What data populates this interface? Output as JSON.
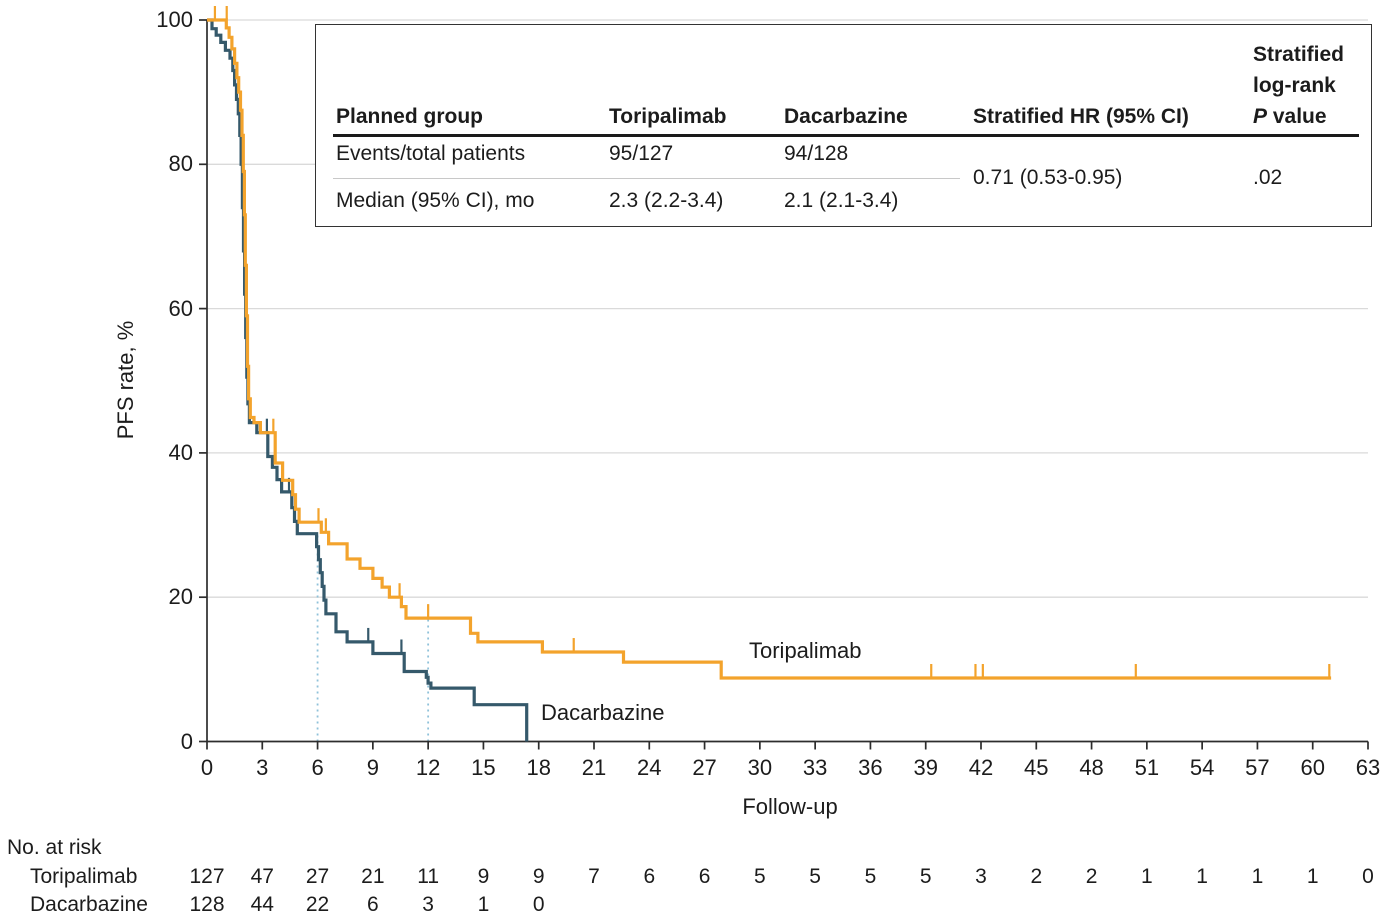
{
  "curve_labels": {
    "toripalimab": "Toripalimab",
    "dacarbazine": "Dacarbazine"
  },
  "inset_table": {
    "headers": {
      "col1": "Planned group",
      "col2": "Toripalimab",
      "col3": "Dacarbazine",
      "col4": "Stratified HR (95% CI)",
      "col5_lines": [
        "Stratified",
        "log-rank"
      ],
      "p_italic": "P",
      "p_rest": " value"
    },
    "rows": [
      {
        "label": "Events/total patients",
        "toripalimab": "95/127",
        "dacarbazine": "94/128"
      },
      {
        "label": "Median (95% CI), mo",
        "toripalimab": "2.3 (2.2-3.4)",
        "dacarbazine": "2.1 (2.1-3.4)"
      }
    ],
    "hr_value": "0.71 (0.53-0.95)",
    "p_value": ".02"
  },
  "risk_table": {
    "title": "No. at risk",
    "rows": [
      {
        "label": "Toripalimab",
        "values": [
          "127",
          "47",
          "27",
          "21",
          "11",
          "9",
          "9",
          "7",
          "6",
          "6",
          "5",
          "5",
          "5",
          "5",
          "3",
          "2",
          "2",
          "1",
          "1",
          "1",
          "1",
          "0"
        ]
      },
      {
        "label": "Dacarbazine",
        "values": [
          "128",
          "44",
          "22",
          "6",
          "3",
          "1",
          "0"
        ]
      }
    ]
  },
  "chart_data": {
    "type": "line",
    "subtype": "kaplan-meier-step",
    "title": "",
    "xlabel": "Follow-up",
    "ylabel": "PFS rate, %",
    "xlim": [
      0,
      63
    ],
    "ylim": [
      0,
      100
    ],
    "xticks": [
      0,
      3,
      6,
      9,
      12,
      15,
      18,
      21,
      24,
      27,
      30,
      33,
      36,
      39,
      42,
      45,
      48,
      51,
      54,
      57,
      60,
      63
    ],
    "yticks": [
      0,
      20,
      40,
      60,
      80,
      100
    ],
    "grid": "horizontal",
    "grid_color": "#dadada",
    "axis_color": "#2d2d2d",
    "landmark_dotted_lines": [
      {
        "x": 6,
        "y_top": 28.8,
        "color": "#8fc2da"
      },
      {
        "x": 12,
        "y_top": 17.1,
        "color": "#8fc2da"
      }
    ],
    "series": [
      {
        "name": "Toripalimab",
        "color": "#f3a32c",
        "events_total": "95/127",
        "median_months": "2.3 (2.2-3.4)",
        "steps": [
          [
            0,
            100
          ],
          [
            1.05,
            98.9
          ],
          [
            1.2,
            97.6
          ],
          [
            1.35,
            96
          ],
          [
            1.5,
            94
          ],
          [
            1.62,
            92
          ],
          [
            1.72,
            90
          ],
          [
            1.82,
            87.5
          ],
          [
            1.9,
            84
          ],
          [
            1.97,
            79
          ],
          [
            2.03,
            73
          ],
          [
            2.08,
            66
          ],
          [
            2.14,
            59
          ],
          [
            2.2,
            52
          ],
          [
            2.26,
            47.5
          ],
          [
            2.35,
            44.9
          ],
          [
            2.55,
            44.2
          ],
          [
            2.9,
            42.8
          ],
          [
            3.7,
            38.6
          ],
          [
            4.1,
            36.2
          ],
          [
            4.65,
            34.2
          ],
          [
            4.8,
            32.2
          ],
          [
            5.0,
            30.4
          ],
          [
            6.2,
            29.0
          ],
          [
            6.6,
            27.4
          ],
          [
            7.6,
            25.3
          ],
          [
            8.3,
            24.0
          ],
          [
            9.0,
            22.6
          ],
          [
            9.5,
            21.4
          ],
          [
            9.9,
            20.0
          ],
          [
            10.55,
            18.7
          ],
          [
            10.8,
            17.1
          ],
          [
            14.3,
            15.0
          ],
          [
            14.7,
            13.8
          ],
          [
            18.2,
            12.4
          ],
          [
            22.6,
            11.0
          ],
          [
            27.9,
            8.8
          ],
          [
            61,
            8.8
          ]
        ],
        "censors": [
          [
            0.43,
            100
          ],
          [
            1.07,
            100
          ],
          [
            3.6,
            42.8
          ],
          [
            6.05,
            30.4
          ],
          [
            6.45,
            29.0
          ],
          [
            10.45,
            20.0
          ],
          [
            12.0,
            17.1
          ],
          [
            19.9,
            12.4
          ],
          [
            39.3,
            8.8
          ],
          [
            41.7,
            8.8
          ],
          [
            42.1,
            8.8
          ],
          [
            50.4,
            8.8
          ],
          [
            60.9,
            8.8
          ]
        ]
      },
      {
        "name": "Dacarbazine",
        "color": "#35596b",
        "events_total": "94/128",
        "median_months": "2.1 (2.1-3.4)",
        "steps": [
          [
            0,
            100
          ],
          [
            0.27,
            98.8
          ],
          [
            0.5,
            97.9
          ],
          [
            0.75,
            96.9
          ],
          [
            1.0,
            95.8
          ],
          [
            1.25,
            94.7
          ],
          [
            1.4,
            93
          ],
          [
            1.5,
            91
          ],
          [
            1.6,
            89
          ],
          [
            1.7,
            87
          ],
          [
            1.78,
            84
          ],
          [
            1.85,
            80
          ],
          [
            1.92,
            74
          ],
          [
            1.98,
            68
          ],
          [
            2.04,
            62
          ],
          [
            2.1,
            56
          ],
          [
            2.16,
            50.5
          ],
          [
            2.22,
            46.8
          ],
          [
            2.3,
            44.2
          ],
          [
            2.7,
            42.8
          ],
          [
            3.3,
            39.5
          ],
          [
            3.55,
            38
          ],
          [
            3.8,
            36.3
          ],
          [
            4.05,
            34.6
          ],
          [
            4.6,
            32.4
          ],
          [
            4.75,
            30.5
          ],
          [
            4.9,
            28.8
          ],
          [
            5.95,
            27.0
          ],
          [
            6.05,
            25.2
          ],
          [
            6.15,
            23.4
          ],
          [
            6.25,
            21.5
          ],
          [
            6.35,
            19.6
          ],
          [
            6.45,
            17.7
          ],
          [
            7.0,
            15.2
          ],
          [
            7.6,
            13.8
          ],
          [
            9.0,
            12.2
          ],
          [
            10.7,
            9.7
          ],
          [
            11.9,
            8.9
          ],
          [
            12.0,
            8.1
          ],
          [
            12.15,
            7.4
          ],
          [
            14.5,
            5.1
          ],
          [
            17.35,
            0
          ]
        ],
        "censors": [
          [
            3.25,
            42.8
          ],
          [
            4.45,
            34.6
          ],
          [
            8.75,
            13.8
          ],
          [
            10.55,
            12.2
          ]
        ]
      }
    ],
    "stratified_hr_95ci": "0.71 (0.53-0.95)",
    "stratified_logrank_p": ".02"
  }
}
